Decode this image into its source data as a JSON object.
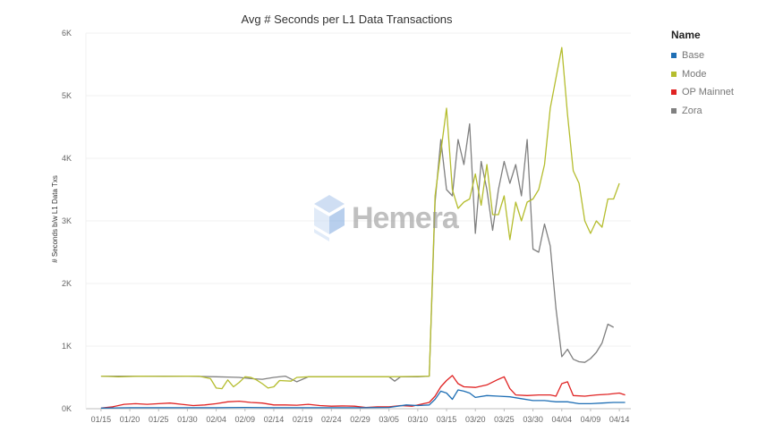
{
  "chart_data": {
    "type": "line",
    "title": "Avg # Seconds per L1 Data Transactions",
    "ylabel": "# Seconds b/w L1 Data Txs",
    "xlabel": "",
    "ylim": [
      0,
      6000
    ],
    "grid": true,
    "legend_title": "Name",
    "legend_position": "right",
    "x_ticks": [
      "01/15",
      "01/20",
      "01/25",
      "01/30",
      "02/04",
      "02/09",
      "02/14",
      "02/19",
      "02/24",
      "02/29",
      "03/05",
      "03/10",
      "03/15",
      "03/20",
      "03/25",
      "03/30",
      "04/04",
      "04/09",
      "04/14"
    ],
    "y_ticks": [
      {
        "value": 0,
        "label": "0K"
      },
      {
        "value": 1000,
        "label": "1K"
      },
      {
        "value": 2000,
        "label": "2K"
      },
      {
        "value": 3000,
        "label": "3K"
      },
      {
        "value": 4000,
        "label": "4K"
      },
      {
        "value": 5000,
        "label": "5K"
      },
      {
        "value": 6000,
        "label": "6K"
      }
    ],
    "series": [
      {
        "name": "Base",
        "color": "#1f6fb5",
        "points": [
          [
            "01/15",
            10
          ],
          [
            "01/20",
            15
          ],
          [
            "01/25",
            15
          ],
          [
            "01/30",
            15
          ],
          [
            "02/04",
            15
          ],
          [
            "02/09",
            20
          ],
          [
            "02/14",
            15
          ],
          [
            "02/19",
            15
          ],
          [
            "02/24",
            15
          ],
          [
            "02/29",
            15
          ],
          [
            "03/05",
            20
          ],
          [
            "03/08",
            60
          ],
          [
            "03/10",
            50
          ],
          [
            "03/12",
            60
          ],
          [
            "03/13",
            150
          ],
          [
            "03/14",
            280
          ],
          [
            "03/15",
            250
          ],
          [
            "03/16",
            150
          ],
          [
            "03/17",
            300
          ],
          [
            "03/18",
            280
          ],
          [
            "03/19",
            250
          ],
          [
            "03/20",
            180
          ],
          [
            "03/22",
            210
          ],
          [
            "03/24",
            200
          ],
          [
            "03/26",
            190
          ],
          [
            "03/28",
            160
          ],
          [
            "03/30",
            130
          ],
          [
            "04/01",
            130
          ],
          [
            "04/03",
            110
          ],
          [
            "04/05",
            110
          ],
          [
            "04/07",
            80
          ],
          [
            "04/09",
            80
          ],
          [
            "04/11",
            90
          ],
          [
            "04/13",
            100
          ],
          [
            "04/15",
            100
          ]
        ]
      },
      {
        "name": "Mode",
        "color": "#b5bd2e",
        "points": [
          [
            "01/15",
            520
          ],
          [
            "01/18",
            510
          ],
          [
            "01/22",
            520
          ],
          [
            "01/26",
            515
          ],
          [
            "01/30",
            520
          ],
          [
            "02/01",
            520
          ],
          [
            "02/03",
            480
          ],
          [
            "02/04",
            330
          ],
          [
            "02/05",
            320
          ],
          [
            "02/06",
            460
          ],
          [
            "02/07",
            350
          ],
          [
            "02/08",
            420
          ],
          [
            "02/09",
            510
          ],
          [
            "02/10",
            500
          ],
          [
            "02/11",
            460
          ],
          [
            "02/12",
            400
          ],
          [
            "02/13",
            330
          ],
          [
            "02/14",
            350
          ],
          [
            "02/15",
            450
          ],
          [
            "02/17",
            440
          ],
          [
            "02/18",
            500
          ],
          [
            "02/20",
            510
          ],
          [
            "02/24",
            510
          ],
          [
            "02/29",
            510
          ],
          [
            "03/05",
            510
          ],
          [
            "03/10",
            515
          ],
          [
            "03/12",
            520
          ],
          [
            "03/13",
            3400
          ],
          [
            "03/14",
            4100
          ],
          [
            "03/15",
            4800
          ],
          [
            "03/16",
            3500
          ],
          [
            "03/17",
            3200
          ],
          [
            "03/18",
            3300
          ],
          [
            "03/19",
            3350
          ],
          [
            "03/20",
            3750
          ],
          [
            "03/21",
            3250
          ],
          [
            "03/22",
            3900
          ],
          [
            "03/23",
            3100
          ],
          [
            "03/24",
            3100
          ],
          [
            "03/25",
            3400
          ],
          [
            "03/26",
            2700
          ],
          [
            "03/27",
            3300
          ],
          [
            "03/28",
            3000
          ],
          [
            "03/29",
            3300
          ],
          [
            "03/30",
            3350
          ],
          [
            "03/31",
            3500
          ],
          [
            "04/01",
            3900
          ],
          [
            "04/02",
            4800
          ],
          [
            "04/04",
            5770
          ],
          [
            "04/05",
            4700
          ],
          [
            "04/06",
            3800
          ],
          [
            "04/07",
            3600
          ],
          [
            "04/08",
            3000
          ],
          [
            "04/09",
            2800
          ],
          [
            "04/10",
            3000
          ],
          [
            "04/11",
            2900
          ],
          [
            "04/12",
            3350
          ],
          [
            "04/13",
            3350
          ],
          [
            "04/14",
            3600
          ]
        ]
      },
      {
        "name": "OP Mainnet",
        "color": "#e02323",
        "points": [
          [
            "01/15",
            10
          ],
          [
            "01/17",
            30
          ],
          [
            "01/19",
            70
          ],
          [
            "01/21",
            80
          ],
          [
            "01/23",
            70
          ],
          [
            "01/25",
            80
          ],
          [
            "01/27",
            90
          ],
          [
            "01/29",
            70
          ],
          [
            "01/31",
            50
          ],
          [
            "02/02",
            60
          ],
          [
            "02/04",
            80
          ],
          [
            "02/06",
            110
          ],
          [
            "02/08",
            120
          ],
          [
            "02/10",
            100
          ],
          [
            "02/12",
            90
          ],
          [
            "02/14",
            60
          ],
          [
            "02/16",
            60
          ],
          [
            "02/18",
            55
          ],
          [
            "02/20",
            70
          ],
          [
            "02/22",
            50
          ],
          [
            "02/24",
            40
          ],
          [
            "02/26",
            45
          ],
          [
            "02/28",
            40
          ],
          [
            "03/01",
            20
          ],
          [
            "03/03",
            30
          ],
          [
            "03/05",
            30
          ],
          [
            "03/07",
            50
          ],
          [
            "03/09",
            40
          ],
          [
            "03/11",
            80
          ],
          [
            "03/12",
            100
          ],
          [
            "03/13",
            200
          ],
          [
            "03/14",
            350
          ],
          [
            "03/15",
            450
          ],
          [
            "03/16",
            530
          ],
          [
            "03/17",
            400
          ],
          [
            "03/18",
            350
          ],
          [
            "03/20",
            340
          ],
          [
            "03/22",
            380
          ],
          [
            "03/24",
            470
          ],
          [
            "03/25",
            510
          ],
          [
            "03/26",
            320
          ],
          [
            "03/27",
            220
          ],
          [
            "03/29",
            210
          ],
          [
            "03/31",
            220
          ],
          [
            "04/02",
            220
          ],
          [
            "04/03",
            200
          ],
          [
            "04/04",
            400
          ],
          [
            "04/05",
            430
          ],
          [
            "04/06",
            210
          ],
          [
            "04/08",
            200
          ],
          [
            "04/10",
            220
          ],
          [
            "04/12",
            230
          ],
          [
            "04/14",
            250
          ],
          [
            "04/15",
            220
          ]
        ]
      },
      {
        "name": "Zora",
        "color": "#808080",
        "points": [
          [
            "01/15",
            520
          ],
          [
            "01/20",
            520
          ],
          [
            "01/25",
            520
          ],
          [
            "01/30",
            520
          ],
          [
            "02/04",
            510
          ],
          [
            "02/06",
            505
          ],
          [
            "02/08",
            500
          ],
          [
            "02/10",
            480
          ],
          [
            "02/12",
            470
          ],
          [
            "02/14",
            500
          ],
          [
            "02/16",
            520
          ],
          [
            "02/18",
            430
          ],
          [
            "02/20",
            510
          ],
          [
            "02/24",
            510
          ],
          [
            "02/29",
            510
          ],
          [
            "03/05",
            510
          ],
          [
            "03/06",
            440
          ],
          [
            "03/07",
            510
          ],
          [
            "03/10",
            510
          ],
          [
            "03/12",
            520
          ],
          [
            "03/13",
            3300
          ],
          [
            "03/14",
            4300
          ],
          [
            "03/15",
            3500
          ],
          [
            "03/16",
            3400
          ],
          [
            "03/17",
            4300
          ],
          [
            "03/18",
            3900
          ],
          [
            "03/19",
            4550
          ],
          [
            "03/20",
            2800
          ],
          [
            "03/21",
            3950
          ],
          [
            "03/22",
            3500
          ],
          [
            "03/23",
            2850
          ],
          [
            "03/24",
            3500
          ],
          [
            "03/25",
            3950
          ],
          [
            "03/26",
            3600
          ],
          [
            "03/27",
            3900
          ],
          [
            "03/28",
            3400
          ],
          [
            "03/29",
            4300
          ],
          [
            "03/30",
            2550
          ],
          [
            "03/31",
            2500
          ],
          [
            "04/01",
            2950
          ],
          [
            "04/02",
            2600
          ],
          [
            "04/03",
            1600
          ],
          [
            "04/04",
            830
          ],
          [
            "04/05",
            950
          ],
          [
            "04/06",
            790
          ],
          [
            "04/07",
            750
          ],
          [
            "04/08",
            740
          ],
          [
            "04/09",
            800
          ],
          [
            "04/10",
            900
          ],
          [
            "04/11",
            1050
          ],
          [
            "04/12",
            1350
          ],
          [
            "04/13",
            1300
          ]
        ]
      }
    ]
  },
  "watermark": "Hemera"
}
